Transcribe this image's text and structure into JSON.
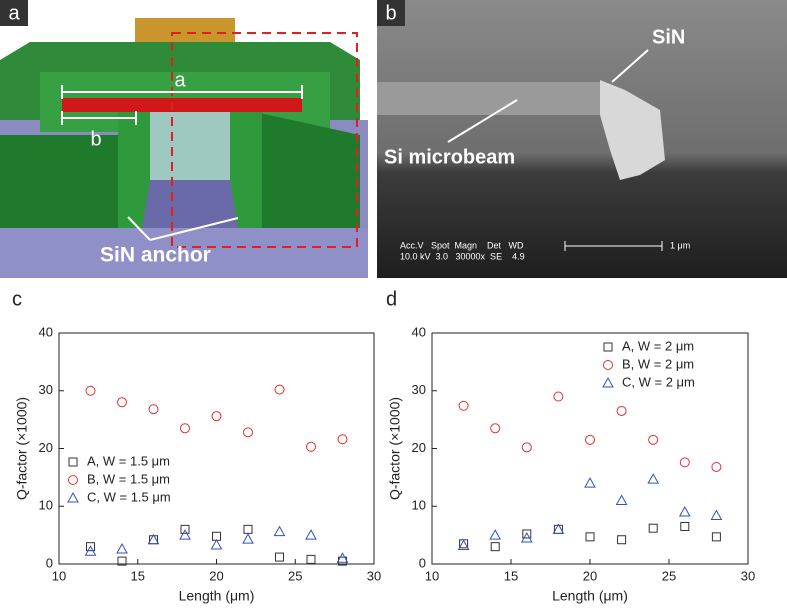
{
  "panels": {
    "a": {
      "label": "a",
      "dim_a": "a",
      "dim_b": "b",
      "anchor": "SiN anchor"
    },
    "b": {
      "label": "b",
      "sin": "SiN",
      "beam": "Si microbeam",
      "info_head": "Acc.V   Spot  Magn    Det   WD",
      "info_vals": "10.0 kV  3.0   30000x  SE    4.9",
      "scale": "1 μm"
    }
  },
  "chart_data": [
    {
      "type": "scatter",
      "panel_label": "c",
      "xlabel": "Length (μm)",
      "ylabel": "Q-factor (×1000)",
      "xlim": [
        10,
        30
      ],
      "xticks": [
        10,
        15,
        20,
        25,
        30
      ],
      "ylim": [
        0,
        40
      ],
      "yticks": [
        0,
        10,
        20,
        30,
        40
      ],
      "legend": "lower left",
      "series": [
        {
          "name": "A, W = 1.5 μm",
          "color": "#333333",
          "marker": "square",
          "x": [
            12,
            14,
            16,
            18,
            20,
            22,
            24,
            26,
            28
          ],
          "values": [
            3.0,
            0.5,
            4.2,
            6.0,
            4.8,
            6.0,
            1.2,
            0.8,
            0.5
          ]
        },
        {
          "name": "B, W = 1.5 μm",
          "color": "#e03030",
          "marker": "circle",
          "x": [
            12,
            14,
            16,
            18,
            20,
            22,
            24,
            26,
            28
          ],
          "values": [
            30.0,
            28.0,
            26.8,
            23.5,
            25.6,
            22.8,
            30.2,
            20.3,
            21.6
          ]
        },
        {
          "name": "C, W = 1.5 μm",
          "color": "#3050c0",
          "marker": "triangle",
          "x": [
            12,
            14,
            16,
            18,
            20,
            22,
            24,
            26,
            28
          ],
          "values": [
            2.2,
            2.6,
            4.2,
            5.0,
            3.3,
            4.3,
            5.6,
            5.0,
            1.0
          ]
        }
      ]
    },
    {
      "type": "scatter",
      "panel_label": "d",
      "xlabel": "Length (μm)",
      "ylabel": "Q-factor (×1000)",
      "xlim": [
        10,
        30
      ],
      "xticks": [
        10,
        15,
        20,
        25,
        30
      ],
      "ylim": [
        0,
        40
      ],
      "yticks": [
        0,
        10,
        20,
        30,
        40
      ],
      "legend": "upper right",
      "series": [
        {
          "name": "A, W = 2 μm",
          "color": "#333333",
          "marker": "square",
          "x": [
            12,
            14,
            16,
            18,
            20,
            22,
            24,
            26,
            28
          ],
          "values": [
            3.5,
            3.0,
            5.2,
            6.0,
            4.7,
            4.2,
            6.2,
            6.5,
            4.7
          ]
        },
        {
          "name": "B, W = 2 μm",
          "color": "#e03030",
          "marker": "circle",
          "x": [
            12,
            14,
            16,
            18,
            20,
            22,
            24,
            26,
            28
          ],
          "values": [
            27.4,
            23.5,
            20.2,
            29.0,
            21.5,
            26.5,
            21.5,
            17.6,
            16.8
          ]
        },
        {
          "name": "C, W = 2 μm",
          "color": "#3050c0",
          "marker": "triangle",
          "x": [
            12,
            14,
            16,
            18,
            20,
            22,
            24,
            26,
            28
          ],
          "values": [
            3.2,
            5.0,
            4.5,
            6.0,
            14.0,
            11.0,
            14.7,
            9.0,
            8.4
          ]
        }
      ]
    }
  ]
}
